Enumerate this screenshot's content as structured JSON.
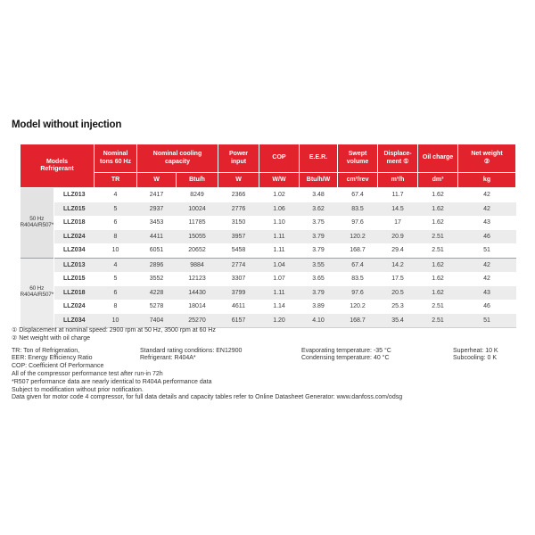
{
  "title": "Model without injection",
  "colors": {
    "header_red": "#e2232d",
    "stripe_gray": "#ececec",
    "group_gray": "#e3e3e3",
    "section_divider": "#9aa0a2"
  },
  "table": {
    "header": {
      "models": "Models\nRefrigerant",
      "cols": [
        "Nominal\ntons 60 Hz",
        "Nominal cooling\ncapacity",
        "Power\ninput",
        "COP",
        "E.E.R.",
        "Swept\nvolume",
        "Displace-\nment ①",
        "Oil charge",
        "Net weight\n②"
      ],
      "units": [
        "TR",
        "W",
        "Btu/h",
        "W",
        "W/W",
        "Btu/h/W",
        "cm³/rev",
        "m³/h",
        "dm³",
        "kg"
      ]
    },
    "sections": [
      {
        "group_lines": [
          "50 Hz",
          "R404A/R507*"
        ],
        "rows": [
          {
            "model": "LLZ013",
            "values": [
              "4",
              "2417",
              "8249",
              "2366",
              "1.02",
              "3.48",
              "67.4",
              "11.7",
              "1.62",
              "42"
            ]
          },
          {
            "model": "LLZ015",
            "values": [
              "5",
              "2937",
              "10024",
              "2776",
              "1.06",
              "3.62",
              "83.5",
              "14.5",
              "1.62",
              "42"
            ]
          },
          {
            "model": "LLZ018",
            "values": [
              "6",
              "3453",
              "11785",
              "3150",
              "1.10",
              "3.75",
              "97.6",
              "17",
              "1.62",
              "43"
            ]
          },
          {
            "model": "LLZ024",
            "values": [
              "8",
              "4411",
              "15055",
              "3957",
              "1.11",
              "3.79",
              "120.2",
              "20.9",
              "2.51",
              "46"
            ]
          },
          {
            "model": "LLZ034",
            "values": [
              "10",
              "6051",
              "20652",
              "5458",
              "1.11",
              "3.79",
              "168.7",
              "29.4",
              "2.51",
              "51"
            ]
          }
        ]
      },
      {
        "group_lines": [
          "60 Hz",
          "R404A/R507*"
        ],
        "rows": [
          {
            "model": "LLZ013",
            "values": [
              "4",
              "2896",
              "9884",
              "2774",
              "1.04",
              "3.55",
              "67.4",
              "14.2",
              "1.62",
              "42"
            ]
          },
          {
            "model": "LLZ015",
            "values": [
              "5",
              "3552",
              "12123",
              "3307",
              "1.07",
              "3.65",
              "83.5",
              "17.5",
              "1.62",
              "42"
            ]
          },
          {
            "model": "LLZ018",
            "values": [
              "6",
              "4228",
              "14430",
              "3799",
              "1.11",
              "3.79",
              "97.6",
              "20.5",
              "1.62",
              "43"
            ]
          },
          {
            "model": "LLZ024",
            "values": [
              "8",
              "5278",
              "18014",
              "4611",
              "1.14",
              "3.89",
              "120.2",
              "25.3",
              "2.51",
              "46"
            ]
          },
          {
            "model": "LLZ034",
            "values": [
              "10",
              "7404",
              "25270",
              "6157",
              "1.20",
              "4.10",
              "168.7",
              "35.4",
              "2.51",
              "51"
            ]
          }
        ]
      }
    ]
  },
  "footnotes": {
    "note1": "① Displacement at nominal speed: 2900 rpm at 50 Hz, 3500 rpm at 60 Hz",
    "note2": "② Net weight with oil charge",
    "left_lines": [
      "TR: Ton of Refrigeration,",
      "EER: Energy Efficiency Ratio",
      "COP: Coefficient Of Performance",
      "All of the compressor performance test after run-in 72h",
      "*R507 performance data are nearly identical to R404A performance data",
      "Subject to modification without prior notification.",
      "Data given for motor code 4 compressor, for full data details and capacity tables refer to Online Datasheet Generator: www.danfoss.com/odsg"
    ],
    "rating_lines": [
      "Standard rating conditions: EN12900",
      "Refrigerant: R404A*"
    ],
    "temp_lines": [
      "Evaporating temperature: -35 °C",
      "Condensing temperature: 40 °C"
    ],
    "superheat_lines": [
      "Superheat: 10 K",
      "Subcooling: 0 K"
    ]
  }
}
